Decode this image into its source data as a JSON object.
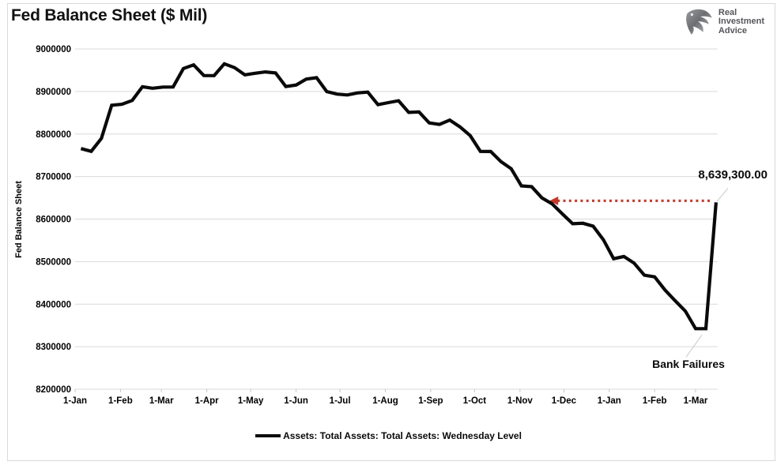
{
  "header": {
    "title": "Fed Balance Sheet ($ Mil)"
  },
  "logo": {
    "icon": "eagle-icon",
    "lines": [
      "Real",
      "Investment",
      "Advice"
    ]
  },
  "legend": {
    "label": "Assets: Total Assets: Total Assets: Wednesday Level"
  },
  "annotations": {
    "last_value_label": "8,639,300.00",
    "arrow_value": 8639300,
    "bank_failures_label": "Bank Failures"
  },
  "colors": {
    "line": "#0a0a0a",
    "grid": "#d9d9d9",
    "tick": "#c6c6c6",
    "leader": "#c9c9c9",
    "arrow": "#c0392b",
    "axis_text": "#000000",
    "logo_text": "#55565a"
  },
  "chart_data": {
    "type": "line",
    "title": "Fed Balance Sheet ($ Mil)",
    "xlabel": "",
    "ylabel": "Fed Balance Sheet",
    "ylim": [
      8200000,
      9000000
    ],
    "grid": true,
    "legend_position": "bottom",
    "yticks": [
      9000000,
      8900000,
      8800000,
      8700000,
      8600000,
      8500000,
      8400000,
      8300000,
      8200000
    ],
    "xticks": [
      {
        "label": "1-Jan",
        "date": "2022-01-01"
      },
      {
        "label": "1-Feb",
        "date": "2022-02-01"
      },
      {
        "label": "1-Mar",
        "date": "2022-03-01"
      },
      {
        "label": "1-Apr",
        "date": "2022-04-01"
      },
      {
        "label": "1-May",
        "date": "2022-05-01"
      },
      {
        "label": "1-Jun",
        "date": "2022-06-01"
      },
      {
        "label": "1-Jul",
        "date": "2022-07-01"
      },
      {
        "label": "1-Aug",
        "date": "2022-08-01"
      },
      {
        "label": "1-Sep",
        "date": "2022-09-01"
      },
      {
        "label": "1-Oct",
        "date": "2022-10-01"
      },
      {
        "label": "1-Nov",
        "date": "2022-11-01"
      },
      {
        "label": "1-Dec",
        "date": "2022-12-01"
      },
      {
        "label": "1-Jan",
        "date": "2023-01-01"
      },
      {
        "label": "1-Feb",
        "date": "2023-02-01"
      },
      {
        "label": "1-Mar",
        "date": "2023-03-01"
      }
    ],
    "series": [
      {
        "name": "Assets: Total Assets: Total Assets: Wednesday Level",
        "x": [
          "2022-01-05",
          "2022-01-12",
          "2022-01-19",
          "2022-01-26",
          "2022-02-02",
          "2022-02-09",
          "2022-02-16",
          "2022-02-23",
          "2022-03-02",
          "2022-03-09",
          "2022-03-16",
          "2022-03-23",
          "2022-03-30",
          "2022-04-06",
          "2022-04-13",
          "2022-04-20",
          "2022-04-27",
          "2022-05-04",
          "2022-05-11",
          "2022-05-18",
          "2022-05-25",
          "2022-06-01",
          "2022-06-08",
          "2022-06-15",
          "2022-06-22",
          "2022-06-29",
          "2022-07-06",
          "2022-07-13",
          "2022-07-20",
          "2022-07-27",
          "2022-08-03",
          "2022-08-10",
          "2022-08-17",
          "2022-08-24",
          "2022-08-31",
          "2022-09-07",
          "2022-09-14",
          "2022-09-21",
          "2022-09-28",
          "2022-10-05",
          "2022-10-12",
          "2022-10-19",
          "2022-10-26",
          "2022-11-02",
          "2022-11-09",
          "2022-11-16",
          "2022-11-23",
          "2022-11-30",
          "2022-12-07",
          "2022-12-14",
          "2022-12-21",
          "2022-12-28",
          "2023-01-04",
          "2023-01-11",
          "2023-01-18",
          "2023-01-25",
          "2023-02-01",
          "2023-02-08",
          "2023-02-15",
          "2023-02-22",
          "2023-03-01",
          "2023-03-08",
          "2023-03-15"
        ],
        "values": [
          8765754,
          8759186,
          8789766,
          8867725,
          8869949,
          8878862,
          8911131,
          8907589,
          8910284,
          8910529,
          8954023,
          8962529,
          8937488,
          8937188,
          8965186,
          8955917,
          8939211,
          8942739,
          8945962,
          8943482,
          8911563,
          8915124,
          8929093,
          8932367,
          8899807,
          8893876,
          8891827,
          8896597,
          8898402,
          8868899,
          8873791,
          8878178,
          8850677,
          8851805,
          8826079,
          8822462,
          8832754,
          8816863,
          8796107,
          8759054,
          8758864,
          8735125,
          8718399,
          8677896,
          8676201,
          8649748,
          8635674,
          8612072,
          8589047,
          8590086,
          8583226,
          8551318,
          8506867,
          8511968,
          8496512,
          8468049,
          8464222,
          8433742,
          8408152,
          8383804,
          8342456,
          8342283,
          8639300
        ]
      }
    ]
  }
}
